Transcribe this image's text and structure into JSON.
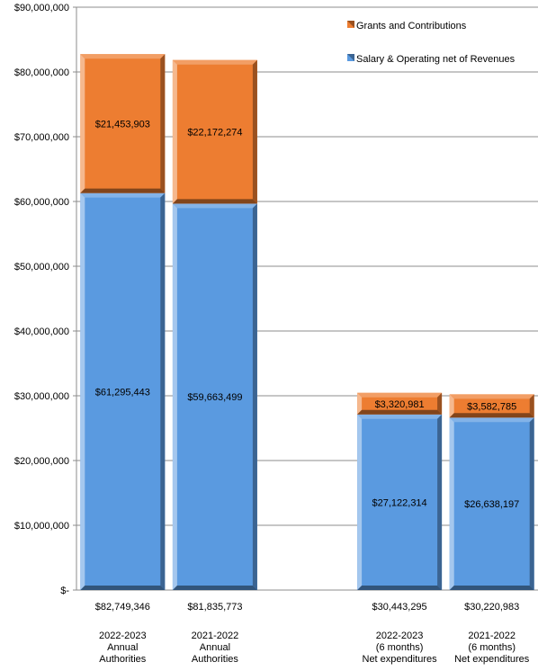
{
  "chart_data": {
    "type": "bar",
    "stacked": true,
    "title": "",
    "xlabel": "",
    "ylabel": "",
    "ylim": [
      0,
      90000000
    ],
    "yticks": [
      {
        "value": 0,
        "label": "$-"
      },
      {
        "value": 10000000,
        "label": "$10,000,000"
      },
      {
        "value": 20000000,
        "label": "$20,000,000"
      },
      {
        "value": 30000000,
        "label": "$30,000,000"
      },
      {
        "value": 40000000,
        "label": "$40,000,000"
      },
      {
        "value": 50000000,
        "label": "$50,000,000"
      },
      {
        "value": 60000000,
        "label": "$60,000,000"
      },
      {
        "value": 70000000,
        "label": "$70,000,000"
      },
      {
        "value": 80000000,
        "label": "$80,000,000"
      },
      {
        "value": 90000000,
        "label": "$90,000,000"
      }
    ],
    "grid": "horizontal",
    "legend_position": "top-right",
    "categories": [
      {
        "lines": [
          "2022-2023",
          "Annual",
          "Authorities"
        ],
        "total_label": "$82,749,346"
      },
      {
        "lines": [
          "2021-2022",
          "Annual",
          "Authorities"
        ],
        "total_label": "$81,835,773"
      },
      {
        "lines": [],
        "total_label": ""
      },
      {
        "lines": [
          "2022-2023",
          "(6 months)",
          "Net expenditures"
        ],
        "total_label": "$30,443,295"
      },
      {
        "lines": [
          "2021-2022",
          "(6 months)",
          "Net expenditures"
        ],
        "total_label": "$30,220,983"
      }
    ],
    "series": [
      {
        "name": "Salary & Operating net of Revenues",
        "color": "#5a9ae0",
        "values": [
          61295443,
          59663499,
          null,
          27122314,
          26638197
        ],
        "labels": [
          "$61,295,443",
          "$59,663,499",
          "",
          "$27,122,314",
          "$26,638,197"
        ]
      },
      {
        "name": "Grants and Contributions",
        "color": "#ed7d31",
        "values": [
          21453903,
          22172274,
          null,
          3320981,
          3582785
        ],
        "labels": [
          "$21,453,903",
          "$22,172,274",
          "",
          "$3,320,981",
          "$3,582,785"
        ]
      }
    ]
  }
}
